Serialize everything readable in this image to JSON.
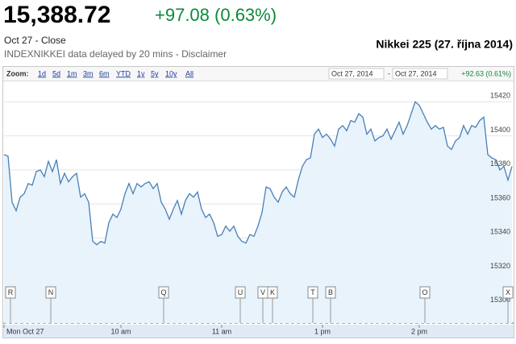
{
  "header": {
    "price": "15,388.72",
    "change": "+97.08 (0.63%)",
    "close_label": "Oct 27 - Close",
    "delay_note": "INDEXNIKKEI data delayed by 20 mins - Disclaimer"
  },
  "toolbar": {
    "zoom_label": "Zoom:",
    "zoom_options": [
      "1d",
      "5d",
      "1m",
      "3m",
      "6m",
      "YTD",
      "1y",
      "5y",
      "10y",
      "All"
    ],
    "range_start": "Oct 27, 2014",
    "range_separator": "-",
    "range_end": "Oct 27, 2014",
    "range_change": "+92.63 (0.61%)"
  },
  "event_flags": [
    "R",
    "N",
    "Q",
    "U",
    "V",
    "K",
    "T",
    "B",
    "O",
    "X"
  ],
  "chart_data": {
    "type": "line",
    "title": "Nikkei 225 (27. října 2014)",
    "values": [
      15389,
      15388,
      15361,
      15356,
      15364,
      15366,
      15372,
      15371,
      15379,
      15380,
      15376,
      15385,
      15379,
      15386,
      15372,
      15378,
      15373,
      15376,
      15378,
      15364,
      15366,
      15361,
      15338,
      15336,
      15338,
      15337,
      15349,
      15354,
      15352,
      15357,
      15366,
      15372,
      15366,
      15372,
      15370,
      15372,
      15373,
      15369,
      15372,
      15361,
      15357,
      15351,
      15357,
      15362,
      15354,
      15362,
      15366,
      15364,
      15367,
      15357,
      15352,
      15354,
      15349,
      15341,
      15342,
      15347,
      15344,
      15347,
      15341,
      15338,
      15337,
      15342,
      15341,
      15347,
      15355,
      15370,
      15369,
      15364,
      15361,
      15367,
      15370,
      15366,
      15364,
      15374,
      15382,
      15386,
      15387,
      15401,
      15404,
      15399,
      15401,
      15398,
      15394,
      15404,
      15406,
      15403,
      15409,
      15408,
      15413,
      15411,
      15401,
      15404,
      15397,
      15399,
      15400,
      15404,
      15398,
      15403,
      15408,
      15401,
      15406,
      15413,
      15420,
      15418,
      15413,
      15408,
      15404,
      15406,
      15404,
      15405,
      15394,
      15392,
      15397,
      15399,
      15406,
      15401,
      15406,
      15405,
      15409,
      15411,
      15389,
      15387,
      15386,
      15380,
      15382,
      15374,
      15382
    ],
    "color": "#4a7eb8",
    "fill": "#e8f3fb",
    "xlim": [
      0,
      126
    ],
    "xticks": [
      {
        "value": 0,
        "label": "Mon Oct 27"
      },
      {
        "value": 29,
        "label": "10 am"
      },
      {
        "value": 54,
        "label": "11 am"
      },
      {
        "value": 79,
        "label": "1 pm"
      },
      {
        "value": 103,
        "label": "2 pm"
      }
    ],
    "ylim": [
      15290,
      15432
    ],
    "yticks": [
      15300,
      15320,
      15340,
      15360,
      15380,
      15400,
      15420
    ],
    "grid": true
  }
}
